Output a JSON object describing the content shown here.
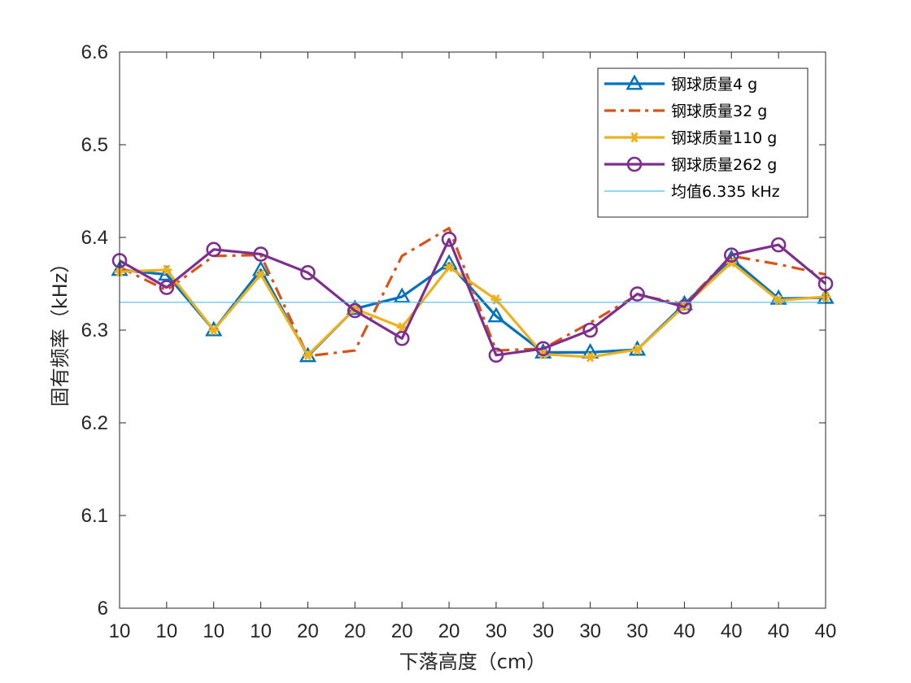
{
  "chart_data": {
    "type": "line",
    "xlabel": "下落高度（cm）",
    "ylabel": "固有频率（kHz）",
    "categories": [
      "10",
      "10",
      "10",
      "10",
      "20",
      "20",
      "20",
      "20",
      "30",
      "30",
      "30",
      "30",
      "40",
      "40",
      "40",
      "40"
    ],
    "ylim": [
      6.0,
      6.6
    ],
    "yticks": [
      "6",
      "6.1",
      "6.2",
      "6.3",
      "6.4",
      "6.5",
      "6.6"
    ],
    "grid": false,
    "legend_position": "top-right",
    "series": [
      {
        "name": "钢球质量4 g",
        "color": "#0072BD",
        "line_style": "solid",
        "marker": "triangle",
        "values": [
          6.365,
          6.36,
          6.3,
          6.365,
          6.272,
          6.323,
          6.336,
          6.372,
          6.315,
          6.276,
          6.276,
          6.279,
          6.328,
          6.377,
          6.334,
          6.335
        ]
      },
      {
        "name": "钢球质量32 g",
        "color": "#D95319",
        "line_style": "dash-dot",
        "marker": "none",
        "values": [
          6.368,
          6.343,
          6.38,
          6.381,
          6.272,
          6.278,
          6.38,
          6.41,
          6.278,
          6.28,
          6.308,
          6.338,
          6.328,
          6.38,
          6.371,
          6.36
        ]
      },
      {
        "name": "钢球质量110 g",
        "color": "#EDB120",
        "line_style": "solid",
        "marker": "asterisk",
        "values": [
          6.363,
          6.365,
          6.3,
          6.36,
          6.273,
          6.323,
          6.303,
          6.368,
          6.333,
          6.274,
          6.271,
          6.279,
          6.326,
          6.373,
          6.332,
          6.336
        ]
      },
      {
        "name": "钢球质量262 g",
        "color": "#7E2F8E",
        "line_style": "solid",
        "marker": "circle",
        "values": [
          6.375,
          6.346,
          6.387,
          6.382,
          6.362,
          6.321,
          6.291,
          6.398,
          6.273,
          6.28,
          6.3,
          6.339,
          6.325,
          6.381,
          6.392,
          6.35
        ]
      },
      {
        "name": "均值6.335 kHz",
        "color": "#4DBEEE",
        "line_style": "thin",
        "marker": "none",
        "values": [
          6.33,
          6.33,
          6.33,
          6.33,
          6.33,
          6.33,
          6.33,
          6.33,
          6.33,
          6.33,
          6.33,
          6.33,
          6.33,
          6.33,
          6.33,
          6.33
        ]
      }
    ]
  }
}
